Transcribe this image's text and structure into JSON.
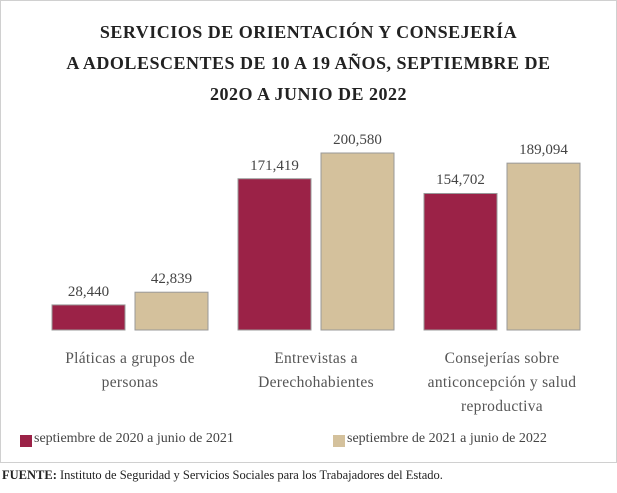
{
  "chart_data": {
    "type": "bar",
    "title": [
      "SERVICIOS DE ORIENTACIÓN Y CONSEJERÍA",
      "A ADOLESCENTES DE 10 A 19 AÑOS,  SEPTIEMBRE DE",
      "202O A JUNIO DE 2022"
    ],
    "categories": [
      "Pláticas a grupos de personas",
      "Entrevistas a Derechohabientes",
      "Consejerías sobre anticoncepción y salud reproductiva"
    ],
    "series": [
      {
        "name": "septiembre de 2020 a junio de 2021",
        "color": "#9b2247",
        "values": [
          28440,
          171419,
          154702
        ],
        "value_labels": [
          "28,440",
          "171,419",
          "154,702"
        ]
      },
      {
        "name": "septiembre de 2021 a junio de 2022",
        "color": "#d4c19c",
        "values": [
          42839,
          200580,
          189094
        ],
        "value_labels": [
          "42,839",
          "200,580",
          "189,094"
        ]
      }
    ],
    "source_label": "FUENTE:",
    "source": "Instituto  de Seguridad  y Servicios  Sociales para los Trabajadores del Estado."
  }
}
